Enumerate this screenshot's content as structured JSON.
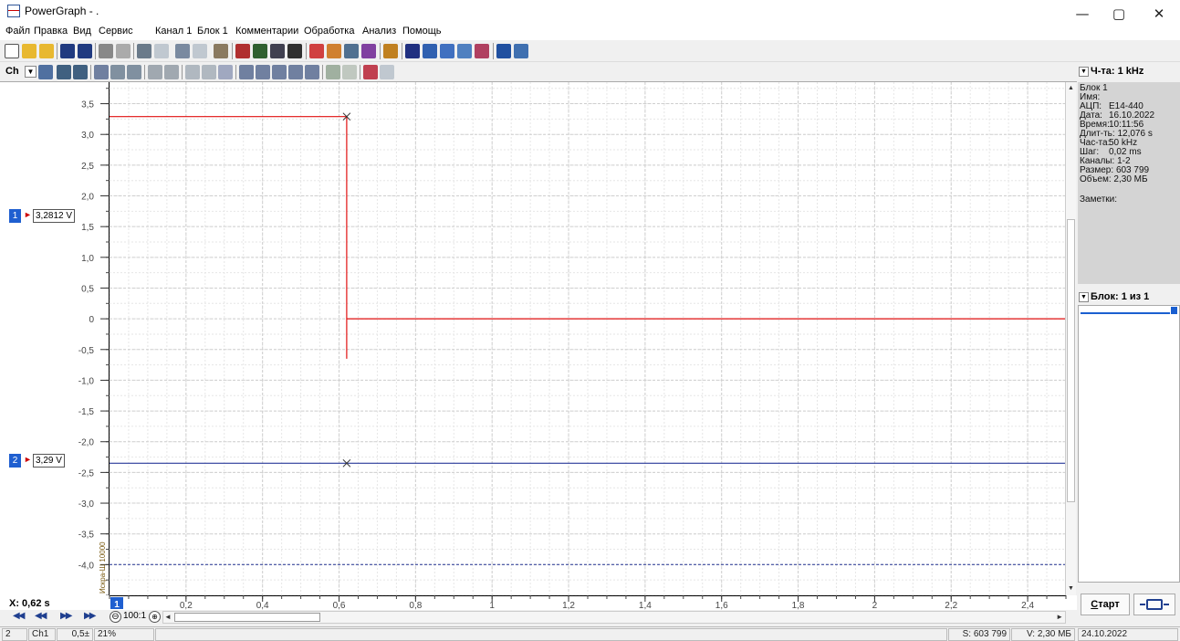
{
  "window": {
    "title": "PowerGraph - .",
    "minimize_glyph": "—",
    "maximize_glyph": "▢",
    "close_glyph": "✕"
  },
  "menu": [
    "Файл",
    "Правка",
    "Вид",
    "Сервис",
    "Канал 1",
    "Блок 1",
    "Комментарии",
    "Обработка",
    "Анализ",
    "Помощь"
  ],
  "toolbar2": {
    "channel_label": "Ch"
  },
  "right_panel": {
    "frequency_label": "Ч-та: 1 kHz",
    "info": {
      "block": "Блок 1",
      "name_key": "Имя:",
      "adc_key": "АЦП:",
      "adc_value": "E14-440",
      "date_key": "Дата:",
      "date_value": "16.10.2022",
      "time_key": "Время:",
      "time_value": "10:11:56",
      "duration_key": "Длит-ть:",
      "duration_value": "12,076 s",
      "freq_key": "Час-та:",
      "freq_value": "50 kHz",
      "step_key": "Шаг:",
      "step_value": "0,02 ms",
      "channels_key": "Каналы:",
      "channels_value": "1-2",
      "size_key": "Размер:",
      "size_value": "603 799",
      "volume_key": "Объем:",
      "volume_value": "2,30 МБ",
      "notes_key": "Заметки:"
    },
    "block_label": "Блок: 1 из 1",
    "start_label_first": "С",
    "start_label_rest": "тарт"
  },
  "channels": [
    {
      "number": "1",
      "value": "3,2812 V",
      "color": "#e01010"
    },
    {
      "number": "2",
      "value": "3,29 V",
      "color": "#2a3a9a"
    }
  ],
  "device_label": "Искра-Ш 10000",
  "cursor": {
    "x_readout": "X: 0,62 s",
    "channel_badge": "1"
  },
  "zoom": {
    "out": "⊖",
    "ratio": "100:1",
    "in": "⊕"
  },
  "nav": {
    "first": "◀◀",
    "prev": "◀◀",
    "next": "▶▶",
    "last": "▶▶"
  },
  "status": {
    "channel_count": "2",
    "channel": "Ch1",
    "scale": "0,5±",
    "percent": "21%",
    "samples": "S: 603 799",
    "volume": "V: 2,30 МБ",
    "date": "24.10.2022"
  },
  "chart_data": {
    "type": "line",
    "xlim": [
      0,
      2.5
    ],
    "ylim": [
      -4.5,
      3.85
    ],
    "x_ticks": [
      0.2,
      0.4,
      0.6,
      0.8,
      1,
      1.2,
      1.4,
      1.6,
      1.8,
      2,
      2.2,
      2.4
    ],
    "x_tick_labels": [
      "0,2",
      "0,4",
      "0,6",
      "0,8",
      "1",
      "1,2",
      "1,4",
      "1,6",
      "1,8",
      "2",
      "2,2",
      "2,4"
    ],
    "y_ticks": [
      3.5,
      3.0,
      2.5,
      2.0,
      1.5,
      1.0,
      0.5,
      0,
      -0.5,
      -1.0,
      -1.5,
      -2.0,
      -2.5,
      -3.0,
      -3.5,
      -4.0
    ],
    "y_tick_labels": [
      "3,5",
      "3,0",
      "2,5",
      "2,0",
      "1,5",
      "1,0",
      "0,5",
      "0",
      "-0,5",
      "-1,0",
      "-1,5",
      "-2,0",
      "-2,5",
      "-3,0",
      "-3,5",
      "-4,0"
    ],
    "grid": true,
    "cursor_x": 0.62,
    "series": [
      {
        "color": "#e01010",
        "x": [
          0,
          0.62,
          0.62,
          0.62,
          0.62,
          2.5
        ],
        "y": [
          3.29,
          3.29,
          0.2,
          -0.65,
          0,
          0
        ]
      },
      {
        "color": "#2a3a9a",
        "x": [
          0,
          2.5
        ],
        "y": [
          -2.35,
          -2.35
        ]
      },
      {
        "color": "#2a3a9a",
        "x": [
          0,
          2.5
        ],
        "y": [
          -4.0,
          -4.0
        ],
        "dashed": true
      }
    ]
  }
}
